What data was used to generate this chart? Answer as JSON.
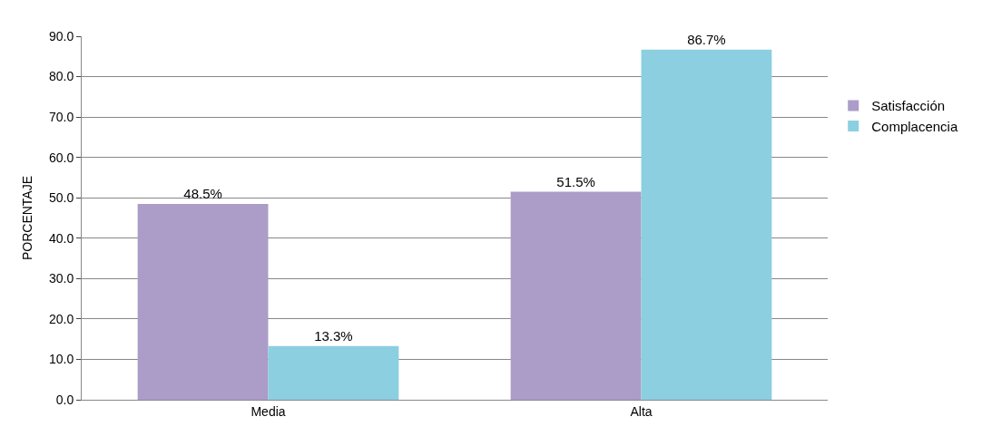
{
  "chart_data": {
    "type": "bar",
    "ylabel": "PORCENTAJE",
    "categories": [
      "Media",
      "Alta"
    ],
    "series": [
      {
        "name": "Satisfacción",
        "color": "#ab9cc8",
        "values": [
          48.5,
          51.5
        ],
        "value_labels": [
          "48.5%",
          "51.5%"
        ]
      },
      {
        "name": "Complacencia",
        "color": "#8ccfe0",
        "values": [
          13.3,
          86.7
        ],
        "value_labels": [
          "13.3%",
          "86.7%"
        ]
      }
    ],
    "ylim": [
      0,
      90
    ],
    "yticks": [
      {
        "value": 0,
        "label": "0.0"
      },
      {
        "value": 10,
        "label": "10.0"
      },
      {
        "value": 20,
        "label": "20.0"
      },
      {
        "value": 30,
        "label": "30.0"
      },
      {
        "value": 40,
        "label": "40.0"
      },
      {
        "value": 50,
        "label": "50.0"
      },
      {
        "value": 60,
        "label": "60.0"
      },
      {
        "value": 70,
        "label": "70.0"
      },
      {
        "value": 80,
        "label": "80.0"
      },
      {
        "value": 90,
        "label": "90.0"
      }
    ],
    "grid": "y",
    "legend": "right"
  }
}
